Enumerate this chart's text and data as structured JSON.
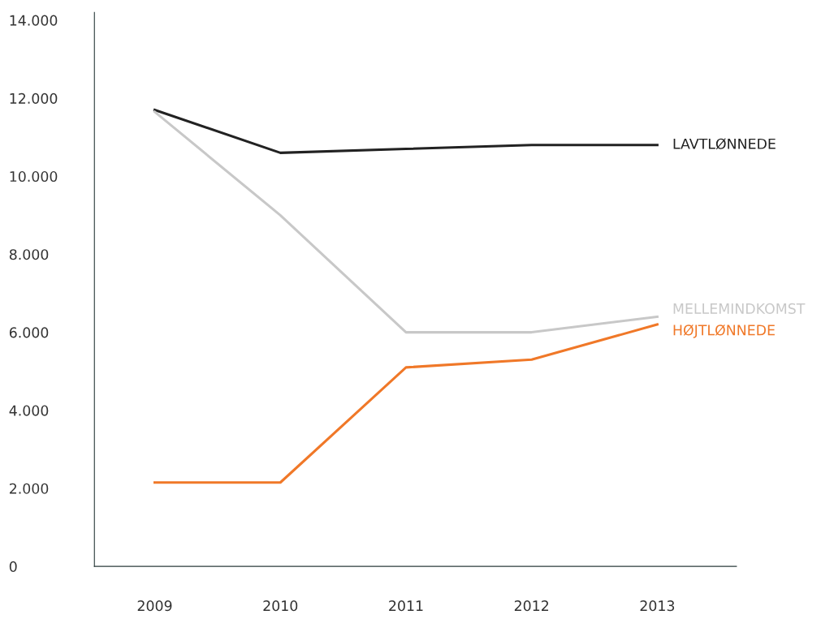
{
  "chart_data": {
    "type": "line",
    "categories": [
      "2009",
      "2010",
      "2011",
      "2012",
      "2013"
    ],
    "series": [
      {
        "name": "LAVTLØNNEDE",
        "color": "#222222",
        "values": [
          11700,
          10600,
          10700,
          10800,
          10800
        ]
      },
      {
        "name": "MELLEMINDKOMST",
        "color": "#c8c8c8",
        "values": [
          11650,
          9000,
          6000,
          6000,
          6400
        ]
      },
      {
        "name": "HØJTLØNNEDE",
        "color": "#f07828",
        "values": [
          2150,
          2150,
          5100,
          5300,
          6200
        ]
      }
    ],
    "ylim": [
      0,
      14200
    ],
    "yticks": [
      0,
      {
        "value": 2000,
        "label": "2.000"
      },
      {
        "value": 4000,
        "label": "4.000"
      },
      {
        "value": 6000,
        "label": "6.000"
      },
      {
        "value": 8000,
        "label": "8.000"
      },
      {
        "value": 10000,
        "label": "10.000"
      },
      {
        "value": 12000,
        "label": "12.000"
      },
      {
        "value": 14000,
        "label": "14.000"
      }
    ],
    "grid": false,
    "legend": false,
    "marker": "none",
    "line_style": "solid"
  }
}
